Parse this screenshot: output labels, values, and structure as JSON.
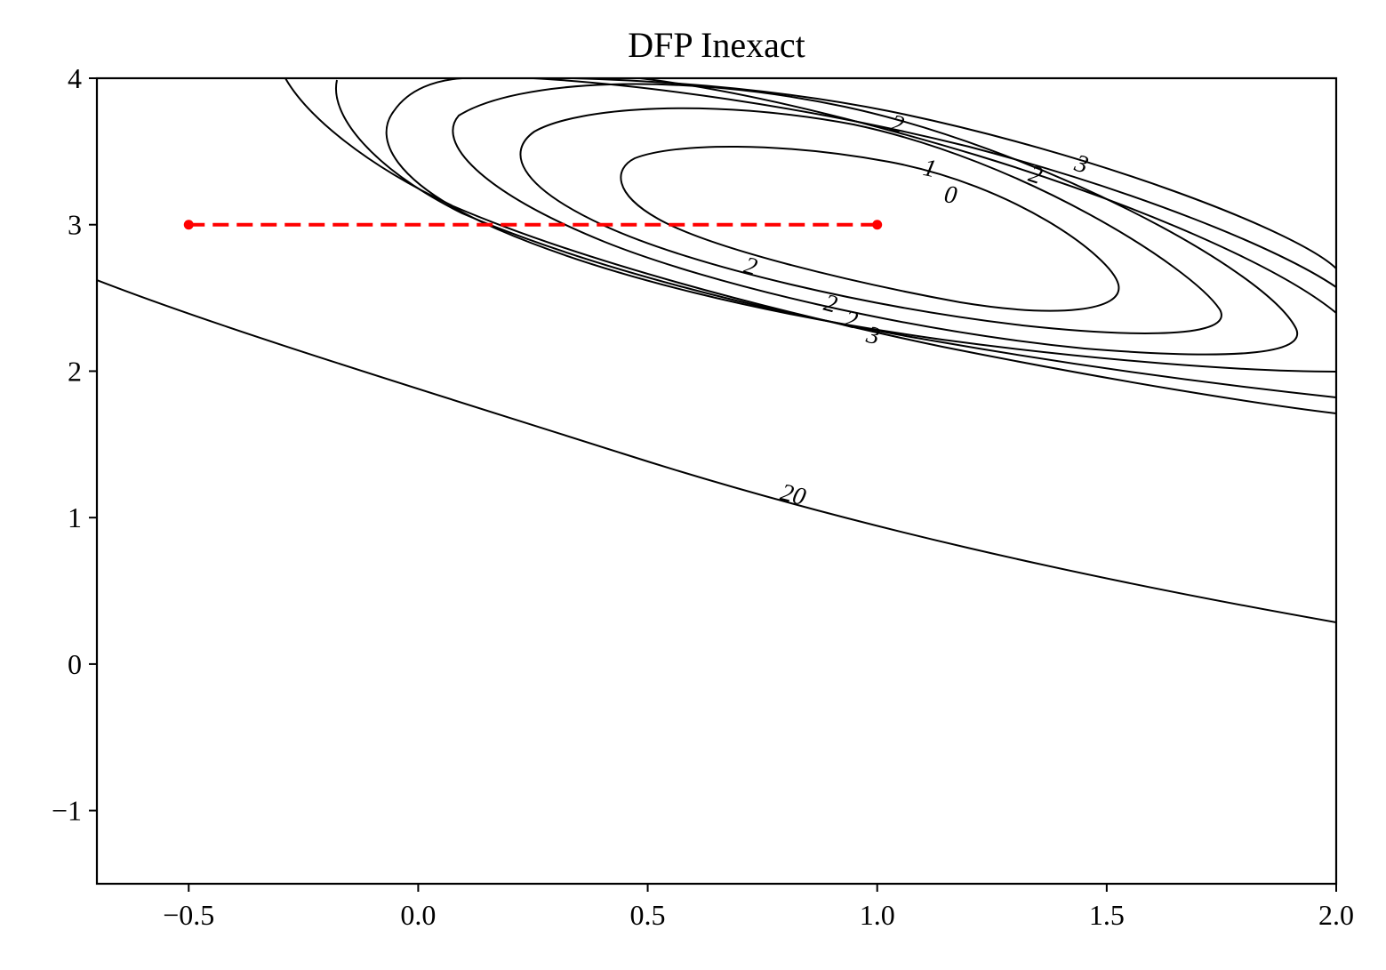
{
  "chart_data": {
    "type": "line",
    "title": "DFP Inexact",
    "xlabel": "",
    "ylabel": "",
    "xlim": [
      -0.7,
      2.0
    ],
    "ylim": [
      -1.5,
      4.0
    ],
    "x_ticks": [
      -0.5,
      0.0,
      0.5,
      1.0,
      1.5,
      2.0
    ],
    "x_tick_labels": [
      "−0.5",
      "0.0",
      "0.5",
      "1.0",
      "1.5",
      "2.0"
    ],
    "y_ticks": [
      -1,
      0,
      1,
      2,
      3,
      4
    ],
    "y_tick_labels": [
      "−1",
      "0",
      "1",
      "2",
      "3",
      "4"
    ],
    "grid": false,
    "legend": "none",
    "contour_labels": [
      "0",
      "1",
      "2",
      "2",
      "3",
      "2",
      "2",
      "2",
      "3",
      "20"
    ],
    "series": [
      {
        "x": [
          -0.5,
          1.0
        ],
        "y": [
          3.0,
          3.0
        ],
        "color": "#ff0000",
        "style": "dashed",
        "marker": "dot"
      }
    ]
  }
}
